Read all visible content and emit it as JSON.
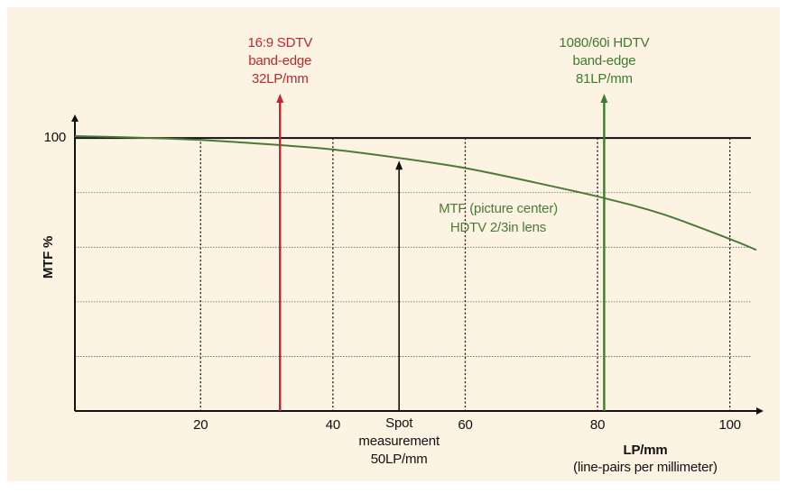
{
  "chart_data": {
    "type": "line",
    "ylabel": "MTF %",
    "xlabel": [
      "LP/mm",
      "(line-pairs per millimeter)"
    ],
    "x": [
      1,
      10,
      20,
      32,
      40,
      50,
      60,
      70,
      81,
      90,
      100,
      104
    ],
    "series": [
      {
        "name": [
          "MTF (picture center)",
          "HDTV 2/3in lens"
        ],
        "color": "#4b7a37",
        "values": [
          100.7,
          100.2,
          99.3,
          97.4,
          95.8,
          92.7,
          89,
          84,
          78,
          72,
          63,
          59
        ]
      }
    ],
    "xlim": [
      1,
      104
    ],
    "ylim": [
      0,
      106
    ],
    "xticks": [
      20,
      40,
      60,
      80,
      100
    ],
    "yticks": [
      100
    ],
    "ygrid": [
      20,
      40,
      60,
      80
    ],
    "annotations": [
      {
        "x": 32,
        "lines": [
          "16:9 SDTV",
          "band-edge",
          "32LP/mm"
        ],
        "color": "#c1272d"
      },
      {
        "x": 81,
        "lines": [
          "1080/60i HDTV",
          "band-edge",
          "81LP/mm"
        ],
        "color": "#3f7a2e"
      },
      {
        "x": 50,
        "lines": [
          "Spot",
          "measurement",
          "50LP/mm"
        ],
        "color": "#111111"
      }
    ]
  }
}
